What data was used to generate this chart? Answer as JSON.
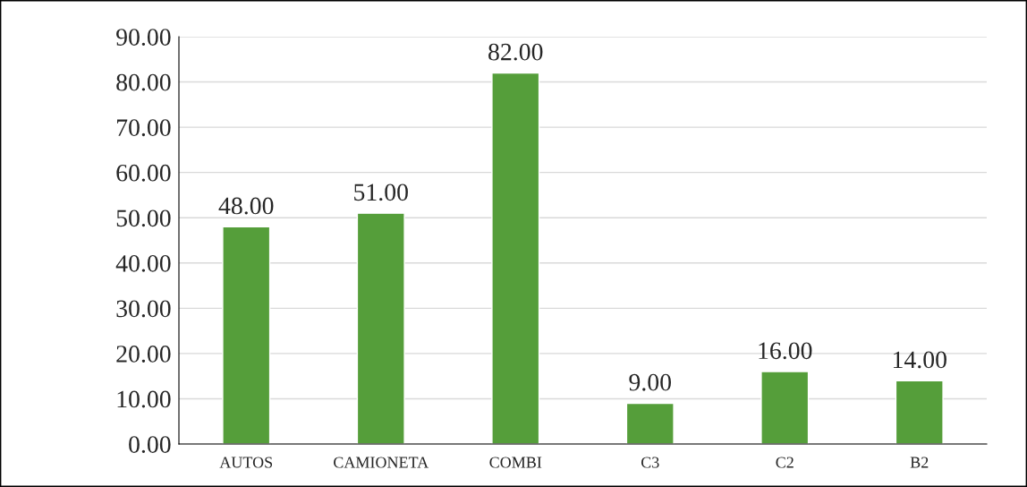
{
  "chart_data": {
    "type": "bar",
    "categories": [
      "AUTOS",
      "CAMIONETA",
      "COMBI",
      "C3",
      "C2",
      "B2"
    ],
    "values": [
      48,
      51,
      82,
      9,
      16,
      14
    ],
    "value_labels": [
      "48.00",
      "51.00",
      "82.00",
      "9.00",
      "16.00",
      "14.00"
    ],
    "color": "#559e3a",
    "ylim": [
      0,
      90
    ],
    "yticks": [
      {
        "value": 0,
        "label": "0.00"
      },
      {
        "value": 10,
        "label": "10.00"
      },
      {
        "value": 20,
        "label": "20.00"
      },
      {
        "value": 30,
        "label": "30.00"
      },
      {
        "value": 40,
        "label": "40.00"
      },
      {
        "value": 50,
        "label": "50.00"
      },
      {
        "value": 60,
        "label": "60.00"
      },
      {
        "value": 70,
        "label": "70.00"
      },
      {
        "value": 80,
        "label": "80.00"
      },
      {
        "value": 90,
        "label": "90.00"
      }
    ],
    "grid": "y"
  }
}
